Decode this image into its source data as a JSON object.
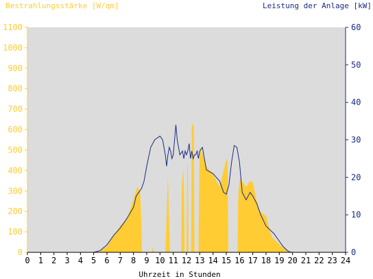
{
  "chart_data": {
    "type": "area",
    "left_title": "Bestrahlungsstärke [W/qm]",
    "right_title": "Leistung der Anlage [kW]",
    "xlabel": "Uhrzeit in Stunden",
    "x_ticks": [
      "0",
      "1",
      "2",
      "3",
      "4",
      "5",
      "6",
      "7",
      "8",
      "9",
      "10",
      "11",
      "12",
      "13",
      "14",
      "15",
      "16",
      "17",
      "18",
      "19",
      "20",
      "21",
      "22",
      "23",
      "24"
    ],
    "y_left_ticks": [
      "0",
      "100",
      "200",
      "300",
      "400",
      "500",
      "600",
      "700",
      "800",
      "900",
      "1000",
      "1100"
    ],
    "y_right_ticks": [
      "0",
      "10",
      "20",
      "30",
      "40",
      "50",
      "60"
    ],
    "xlim": [
      0,
      24
    ],
    "ylim_left": [
      0,
      1100
    ],
    "ylim_right": [
      0,
      60
    ],
    "grid": false,
    "colors": {
      "irradiance": "#ffcc33",
      "power": "#1a2a80",
      "plot_bg": "#dcdcdc",
      "left_axis_text": "#ffcc33",
      "right_axis_text": "#1a2a80",
      "xaxis_text": "#000000"
    },
    "series": [
      {
        "axis": "left",
        "style": "area",
        "x": [
          5.0,
          5.5,
          6.0,
          6.5,
          7.0,
          7.5,
          8.0,
          8.3,
          8.5,
          8.6,
          8.65,
          9.4,
          9.45,
          9.5,
          9.55,
          10.4,
          10.45,
          10.6,
          10.7,
          10.75,
          11.6,
          11.65,
          11.75,
          11.8,
          11.85,
          12.0,
          12.05,
          12.1,
          12.15,
          12.35,
          12.4,
          12.5,
          12.55,
          12.6,
          12.65,
          12.9,
          12.95,
          13.0,
          13.5,
          14.0,
          14.5,
          14.8,
          15.0,
          15.1,
          15.15,
          15.85,
          15.9,
          16.0,
          16.5,
          16.8,
          17.0,
          17.3,
          17.5,
          18.0,
          18.3,
          18.5,
          19.0,
          19.5,
          19.8,
          20.0
        ],
        "values": [
          0,
          5,
          30,
          80,
          130,
          160,
          260,
          320,
          300,
          120,
          0,
          0,
          25,
          15,
          0,
          0,
          60,
          380,
          120,
          0,
          0,
          330,
          410,
          330,
          0,
          0,
          420,
          440,
          0,
          0,
          620,
          630,
          600,
          0,
          0,
          0,
          300,
          520,
          420,
          380,
          320,
          400,
          450,
          460,
          0,
          0,
          260,
          360,
          320,
          350,
          340,
          250,
          200,
          180,
          100,
          70,
          40,
          10,
          2,
          0
        ]
      },
      {
        "axis": "right",
        "style": "line",
        "x": [
          5.0,
          5.5,
          6.0,
          6.5,
          7.0,
          7.5,
          8.0,
          8.2,
          8.4,
          8.5,
          8.6,
          8.8,
          9.0,
          9.3,
          9.6,
          10.0,
          10.2,
          10.4,
          10.5,
          10.6,
          10.7,
          10.8,
          10.9,
          11.0,
          11.1,
          11.2,
          11.3,
          11.5,
          11.7,
          11.8,
          11.9,
          12.0,
          12.1,
          12.2,
          12.3,
          12.4,
          12.5,
          12.6,
          12.7,
          12.8,
          12.9,
          13.0,
          13.2,
          13.5,
          14.0,
          14.5,
          14.8,
          15.0,
          15.2,
          15.4,
          15.6,
          15.8,
          16.0,
          16.2,
          16.5,
          16.8,
          17.0,
          17.3,
          17.6,
          18.0,
          18.3,
          18.6,
          19.0,
          19.3,
          19.6,
          19.8,
          20.0
        ],
        "values": [
          0,
          0.5,
          2,
          4.5,
          6.5,
          9,
          12,
          15,
          16,
          16.5,
          17,
          19,
          23,
          28,
          30,
          31,
          30,
          26,
          23,
          26,
          28,
          27,
          25,
          26,
          30,
          34,
          30,
          26,
          27,
          25,
          27,
          26,
          27,
          29,
          25,
          27,
          25,
          26,
          26,
          27,
          25,
          27,
          28,
          22,
          21,
          19,
          16,
          15.5,
          18,
          24,
          28.5,
          28,
          24,
          16,
          14,
          16,
          15,
          13,
          10,
          7,
          6,
          5,
          3,
          1.5,
          0.5,
          0.1,
          0
        ]
      }
    ]
  }
}
